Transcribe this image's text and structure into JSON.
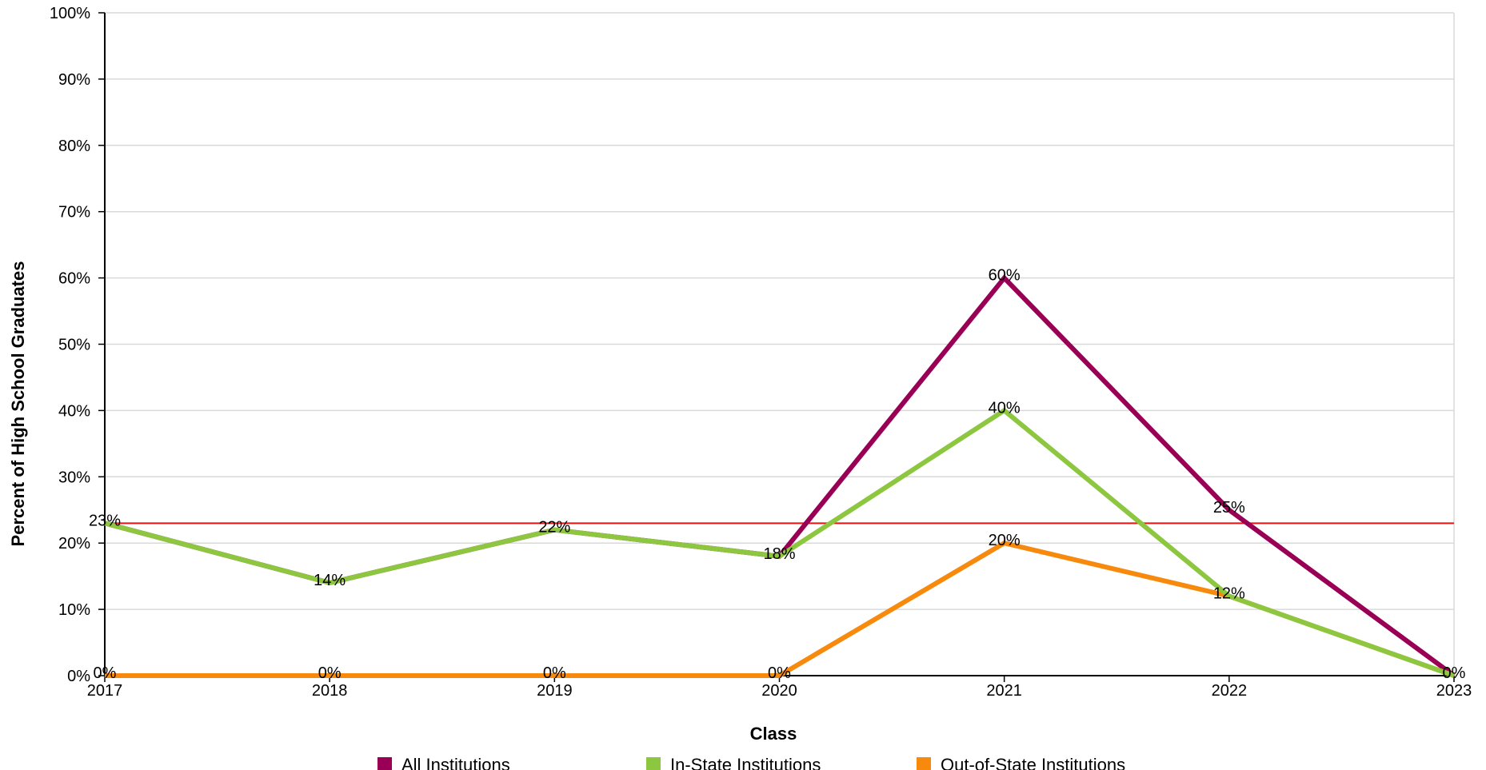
{
  "chart_data": {
    "type": "line",
    "xlabel": "Class",
    "ylabel": "Percent of High School Graduates",
    "x": [
      "2017",
      "2018",
      "2019",
      "2020",
      "2021",
      "2022",
      "2023"
    ],
    "yticks": [
      "0%",
      "10%",
      "20%",
      "30%",
      "40%",
      "50%",
      "60%",
      "70%",
      "80%",
      "90%",
      "100%"
    ],
    "ylim": [
      0,
      100
    ],
    "grid": true,
    "legend_position": "bottom",
    "series": [
      {
        "name": "All Institutions",
        "color": "#990055",
        "values": [
          23,
          14,
          22,
          18,
          60,
          25,
          0
        ],
        "labels": [
          "23%",
          "14%",
          "22%",
          "18%",
          "60%",
          "25%",
          "0%"
        ]
      },
      {
        "name": "In-State Institutions",
        "color": "#8dc63f",
        "values": [
          23,
          14,
          22,
          18,
          40,
          12,
          0
        ],
        "labels": [
          "",
          "",
          "",
          "",
          "40%",
          "12%",
          ""
        ]
      },
      {
        "name": "Out-of-State Institutions",
        "color": "#f7890c",
        "values": [
          0,
          0,
          0,
          0,
          20,
          12,
          0
        ],
        "labels": [
          "0%",
          "0%",
          "0%",
          "0%",
          "20%",
          "",
          ""
        ]
      }
    ],
    "reference_line": {
      "value": 23,
      "color": "#ee1111"
    }
  }
}
